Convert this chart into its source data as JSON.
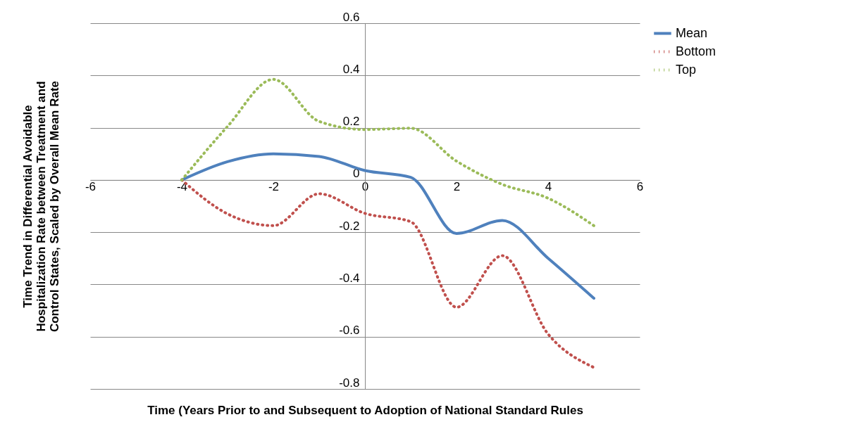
{
  "chart_data": {
    "type": "line",
    "xlabel": "Time (Years Prior to and Subsequent to Adoption of National Standard Rules",
    "ylabel": "Time Trend in Differential Avoidable Hospitalization Rate between Treatment and Control States, Scaled by Overall Mean Rate",
    "x": [
      -4,
      -3,
      -2,
      -1,
      0,
      1,
      2,
      3,
      4,
      5
    ],
    "series": [
      {
        "name": "Mean",
        "color": "#4f81bd",
        "line_style": "solid",
        "values": [
          0,
          0.07,
          0.1,
          0.09,
          0.036,
          0.01,
          -0.205,
          -0.155,
          -0.3,
          -0.453
        ]
      },
      {
        "name": "Bottom",
        "color": "#c0504d",
        "line_style": "dotted",
        "values": [
          0,
          -0.13,
          -0.175,
          -0.053,
          -0.128,
          -0.16,
          -0.487,
          -0.29,
          -0.59,
          -0.718
        ]
      },
      {
        "name": "Top",
        "color": "#9bbb59",
        "line_style": "dotted",
        "values": [
          0,
          0.205,
          0.385,
          0.224,
          0.193,
          0.198,
          0.072,
          -0.017,
          -0.07,
          -0.175
        ]
      }
    ],
    "xlim": [
      -6,
      6
    ],
    "xticks": [
      -6,
      -4,
      -2,
      0,
      2,
      4,
      6
    ],
    "ylim": [
      -0.8,
      0.6
    ],
    "yticks": [
      -0.8,
      -0.6,
      -0.4,
      -0.2,
      0,
      0.2,
      0.4,
      0.6
    ],
    "grid": "y",
    "legend": "right"
  }
}
